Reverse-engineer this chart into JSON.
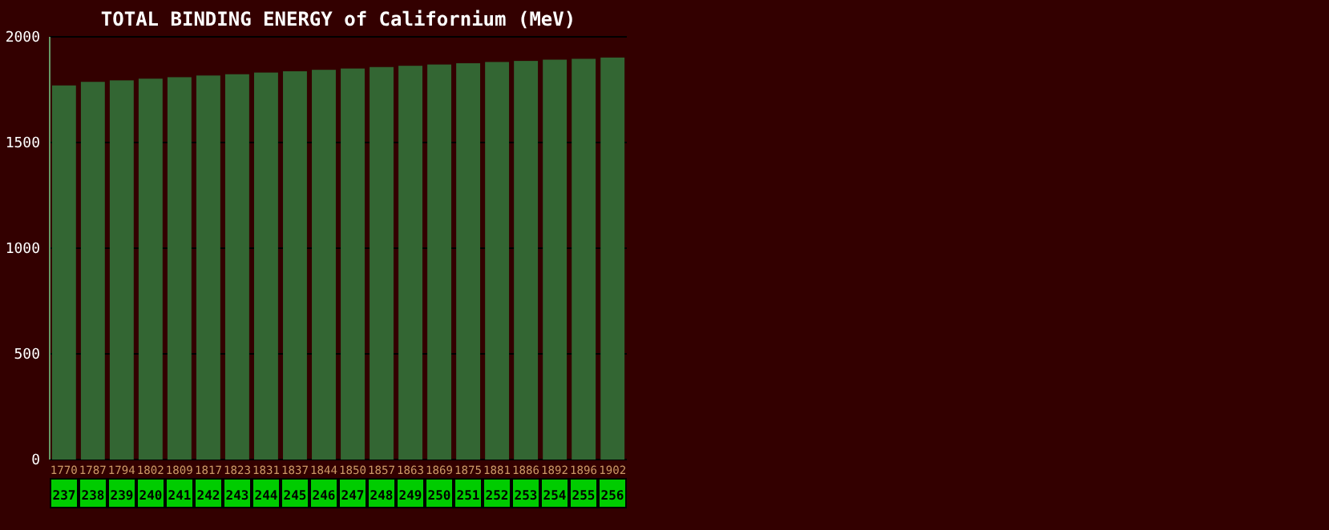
{
  "chart_data": {
    "type": "bar",
    "title": "TOTAL BINDING ENERGY of Californium (MeV)",
    "categories": [
      "237",
      "238",
      "239",
      "240",
      "241",
      "242",
      "243",
      "244",
      "245",
      "246",
      "247",
      "248",
      "249",
      "250",
      "251",
      "252",
      "253",
      "254",
      "255",
      "256"
    ],
    "values": [
      1770,
      1787,
      1794,
      1802,
      1809,
      1817,
      1823,
      1831,
      1837,
      1844,
      1850,
      1857,
      1863,
      1869,
      1875,
      1881,
      1886,
      1892,
      1896,
      1902
    ],
    "color": "#336633",
    "ylim": [
      0,
      2000
    ],
    "yticks": [
      0,
      500,
      1000,
      1500,
      2000
    ],
    "grid": "y",
    "data_labels": true
  }
}
